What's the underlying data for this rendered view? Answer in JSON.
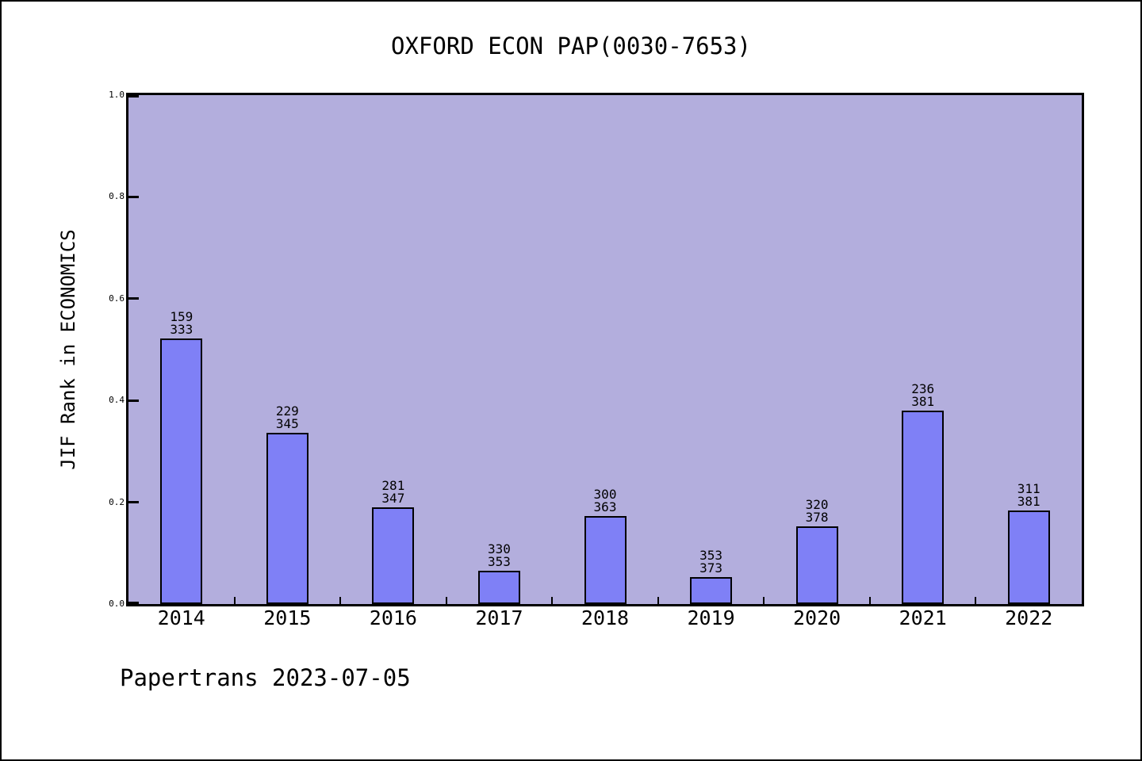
{
  "page": {
    "footer": "Papertrans 2023-07-05"
  },
  "chart_data": {
    "type": "bar",
    "title": "OXFORD ECON PAP(0030-7653)",
    "xlabel": "",
    "ylabel": "JIF Rank in ECONOMICS",
    "ylim": [
      0.0,
      1.0
    ],
    "ytick_labels": [
      "0.0",
      "0.2",
      "0.4",
      "0.6",
      "0.8",
      "1.0"
    ],
    "grid": false,
    "legend_position": "none",
    "categories": [
      "2014",
      "2015",
      "2016",
      "2017",
      "2018",
      "2019",
      "2020",
      "2021",
      "2022"
    ],
    "bars": [
      {
        "year": "2014",
        "rank": 159,
        "total": 333,
        "value": 0.5225
      },
      {
        "year": "2015",
        "rank": 229,
        "total": 345,
        "value": 0.3362
      },
      {
        "year": "2016",
        "rank": 281,
        "total": 347,
        "value": 0.1902
      },
      {
        "year": "2017",
        "rank": 330,
        "total": 353,
        "value": 0.0652
      },
      {
        "year": "2018",
        "rank": 300,
        "total": 363,
        "value": 0.1736
      },
      {
        "year": "2019",
        "rank": 353,
        "total": 373,
        "value": 0.0536
      },
      {
        "year": "2020",
        "rank": 320,
        "total": 378,
        "value": 0.1534
      },
      {
        "year": "2021",
        "rank": 236,
        "total": 381,
        "value": 0.3806
      },
      {
        "year": "2022",
        "rank": 311,
        "total": 381,
        "value": 0.1837
      }
    ],
    "bar_label_note": "each bar is annotated with rank above total",
    "colors": {
      "bar_fill": "#7f80f6",
      "bar_border": "#000000",
      "plot_bg": "#b3aedd",
      "page_bg": "#ffffff",
      "text": "#000000"
    }
  }
}
